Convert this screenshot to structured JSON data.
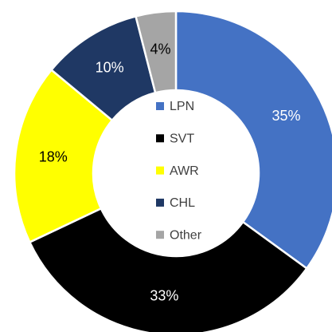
{
  "chart_data": {
    "type": "donut",
    "categories": [
      "LPN",
      "SVT",
      "AWR",
      "CHL",
      "Other"
    ],
    "values": [
      35,
      33,
      18,
      10,
      4
    ],
    "value_labels": [
      "35%",
      "33%",
      "18%",
      "10%",
      "4%"
    ],
    "colors": [
      "#4472c4",
      "#000000",
      "#ffff00",
      "#1f3864",
      "#a5a5a5"
    ],
    "legend": "center"
  }
}
